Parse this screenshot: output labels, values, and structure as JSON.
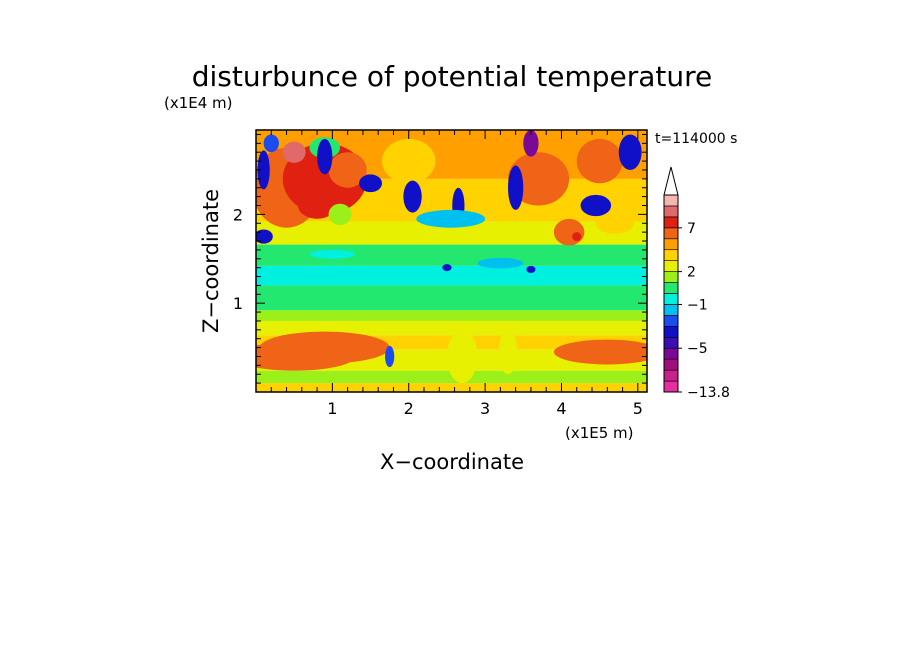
{
  "chart_data": {
    "type": "heatmap",
    "title": "disturbunce of potential temperature",
    "xlabel": "X−coordinate",
    "ylabel": "Z−coordinate",
    "x_unit": "(x1E5 m)",
    "y_unit": "(x1E4 m)",
    "time_label": "t=114000 s",
    "xlim": [
      0,
      5.12
    ],
    "ylim": [
      0,
      2.95
    ],
    "x_ticks": [
      1,
      2,
      3,
      4,
      5
    ],
    "x_tick_labels": [
      "1",
      "2",
      "3",
      "4",
      "5"
    ],
    "y_ticks": [
      1,
      2
    ],
    "y_tick_labels": [
      "1",
      "2"
    ],
    "colorbar": {
      "min": -13.8,
      "levels": [
        -13.8,
        -11,
        -9,
        -7,
        -5,
        -4,
        -3,
        -2,
        -1,
        0,
        1,
        2,
        3,
        4,
        5,
        7,
        9,
        11
      ],
      "colors": [
        "#e62ea0",
        "#c8208c",
        "#a0107c",
        "#7a0a96",
        "#3a10b4",
        "#1010c8",
        "#1a4cf0",
        "#00c0f0",
        "#00f0e0",
        "#22e870",
        "#9af018",
        "#e6f000",
        "#ffd200",
        "#ffa000",
        "#f06418",
        "#e02010",
        "#e06a6a",
        "#f4b6b0"
      ],
      "labels": [
        {
          "value": 7,
          "text": "7"
        },
        {
          "value": 2,
          "text": "2"
        },
        {
          "value": -1,
          "text": "−1"
        },
        {
          "value": -5,
          "text": "−5"
        },
        {
          "value": -13.8,
          "text": "−13.8"
        }
      ]
    }
  }
}
